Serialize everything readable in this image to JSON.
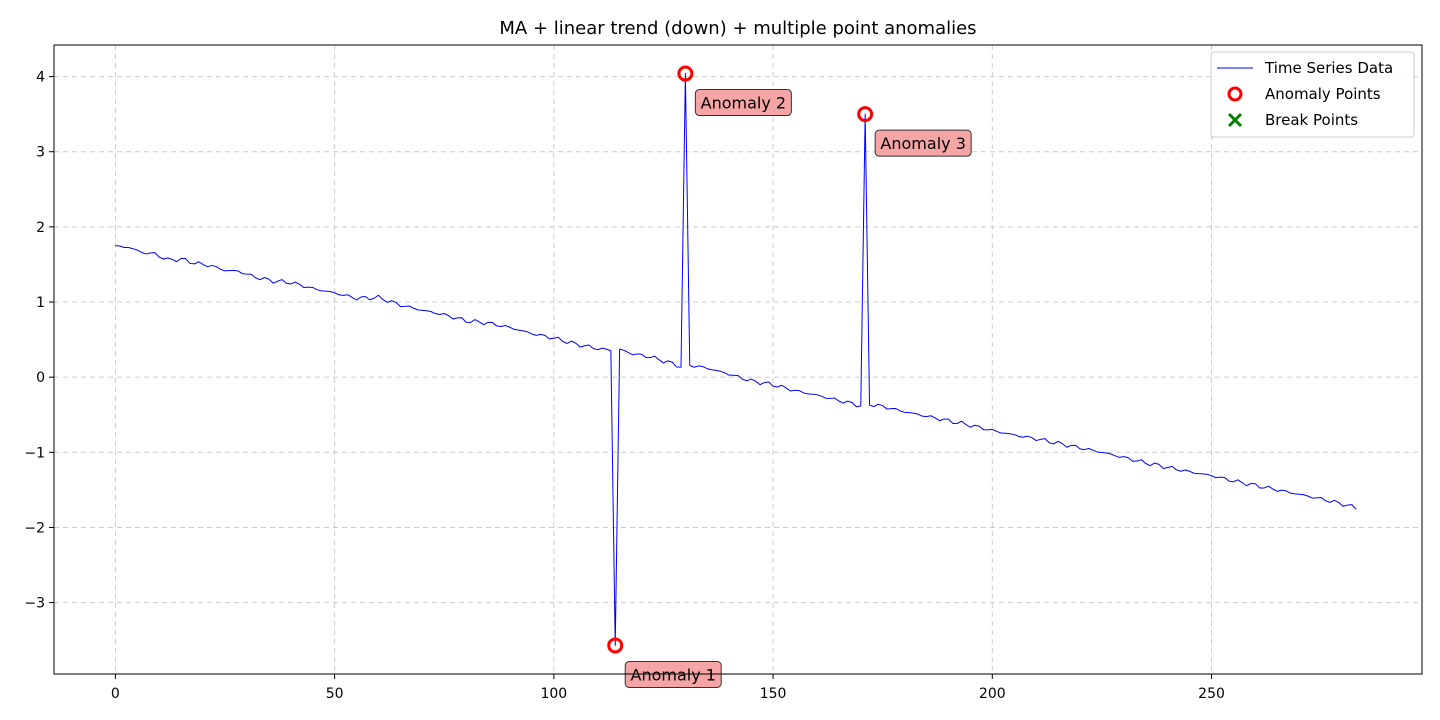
{
  "chart_data": {
    "type": "line",
    "title": "MA + linear trend (down) + multiple point anomalies",
    "xlabel": "",
    "ylabel": "",
    "xlim": [
      -14,
      298
    ],
    "ylim": [
      -3.95,
      4.42
    ],
    "grid": true,
    "legend_placement": "top-right",
    "x_ticks": [
      0,
      50,
      100,
      150,
      200,
      250
    ],
    "x_tick_labels": [
      "0",
      "50",
      "100",
      "150",
      "200",
      "250"
    ],
    "y_ticks": [
      -3,
      -2,
      -1,
      0,
      1,
      2,
      3,
      4
    ],
    "y_tick_labels": [
      "−3",
      "−2",
      "−1",
      "0",
      "1",
      "2",
      "3",
      "4"
    ],
    "series": [
      {
        "name": "Time Series Data",
        "color": "#0000ff",
        "trend": {
          "x_start": 0,
          "x_end": 283,
          "y_start": 1.74,
          "y_end": -1.74
        },
        "keypoints": [
          [
            0,
            1.74
          ],
          [
            3,
            1.73
          ],
          [
            6,
            1.66
          ],
          [
            9,
            1.64
          ],
          [
            12,
            1.56
          ],
          [
            15,
            1.57
          ],
          [
            18,
            1.52
          ],
          [
            22,
            1.48
          ],
          [
            25,
            1.42
          ],
          [
            28,
            1.41
          ],
          [
            32,
            1.33
          ],
          [
            36,
            1.28
          ],
          [
            40,
            1.26
          ],
          [
            45,
            1.18
          ],
          [
            50,
            1.12
          ],
          [
            55,
            1.05
          ],
          [
            60,
            1.06
          ],
          [
            65,
            0.96
          ],
          [
            70,
            0.89
          ],
          [
            75,
            0.83
          ],
          [
            80,
            0.75
          ],
          [
            85,
            0.72
          ],
          [
            90,
            0.66
          ],
          [
            95,
            0.58
          ],
          [
            100,
            0.52
          ],
          [
            105,
            0.44
          ],
          [
            110,
            0.38
          ],
          [
            113,
            0.36
          ],
          [
            114,
            -3.57
          ],
          [
            115,
            0.37
          ],
          [
            118,
            0.31
          ],
          [
            122,
            0.27
          ],
          [
            126,
            0.2
          ],
          [
            129,
            0.14
          ],
          [
            130,
            4.04
          ],
          [
            131,
            0.16
          ],
          [
            135,
            0.12
          ],
          [
            140,
            0.04
          ],
          [
            145,
            -0.05
          ],
          [
            150,
            -0.1
          ],
          [
            155,
            -0.18
          ],
          [
            160,
            -0.24
          ],
          [
            165,
            -0.31
          ],
          [
            170,
            -0.38
          ],
          [
            171,
            3.5
          ],
          [
            172,
            -0.36
          ],
          [
            175,
            -0.39
          ],
          [
            180,
            -0.46
          ],
          [
            185,
            -0.52
          ],
          [
            190,
            -0.58
          ],
          [
            195,
            -0.64
          ],
          [
            200,
            -0.71
          ],
          [
            205,
            -0.77
          ],
          [
            210,
            -0.82
          ],
          [
            215,
            -0.88
          ],
          [
            220,
            -0.94
          ],
          [
            225,
            -1.0
          ],
          [
            230,
            -1.07
          ],
          [
            235,
            -1.14
          ],
          [
            240,
            -1.2
          ],
          [
            245,
            -1.26
          ],
          [
            250,
            -1.31
          ],
          [
            255,
            -1.38
          ],
          [
            260,
            -1.44
          ],
          [
            265,
            -1.5
          ],
          [
            270,
            -1.56
          ],
          [
            275,
            -1.62
          ],
          [
            280,
            -1.69
          ],
          [
            283,
            -1.74
          ]
        ]
      }
    ],
    "anomaly_points": [
      {
        "x": 114,
        "y": -3.57,
        "label": "Anomaly 1"
      },
      {
        "x": 130,
        "y": 4.04,
        "label": "Anomaly 2"
      },
      {
        "x": 171,
        "y": 3.5,
        "label": "Anomaly 3"
      }
    ],
    "break_points": [],
    "legend": [
      {
        "label": "Time Series Data",
        "marker": "line",
        "color": "#0000ff"
      },
      {
        "label": "Anomaly Points",
        "marker": "circle",
        "color": "#ff0000"
      },
      {
        "label": "Break Points",
        "marker": "x",
        "color": "#008000"
      }
    ],
    "annotation_box_color": "#f4a0a0"
  }
}
